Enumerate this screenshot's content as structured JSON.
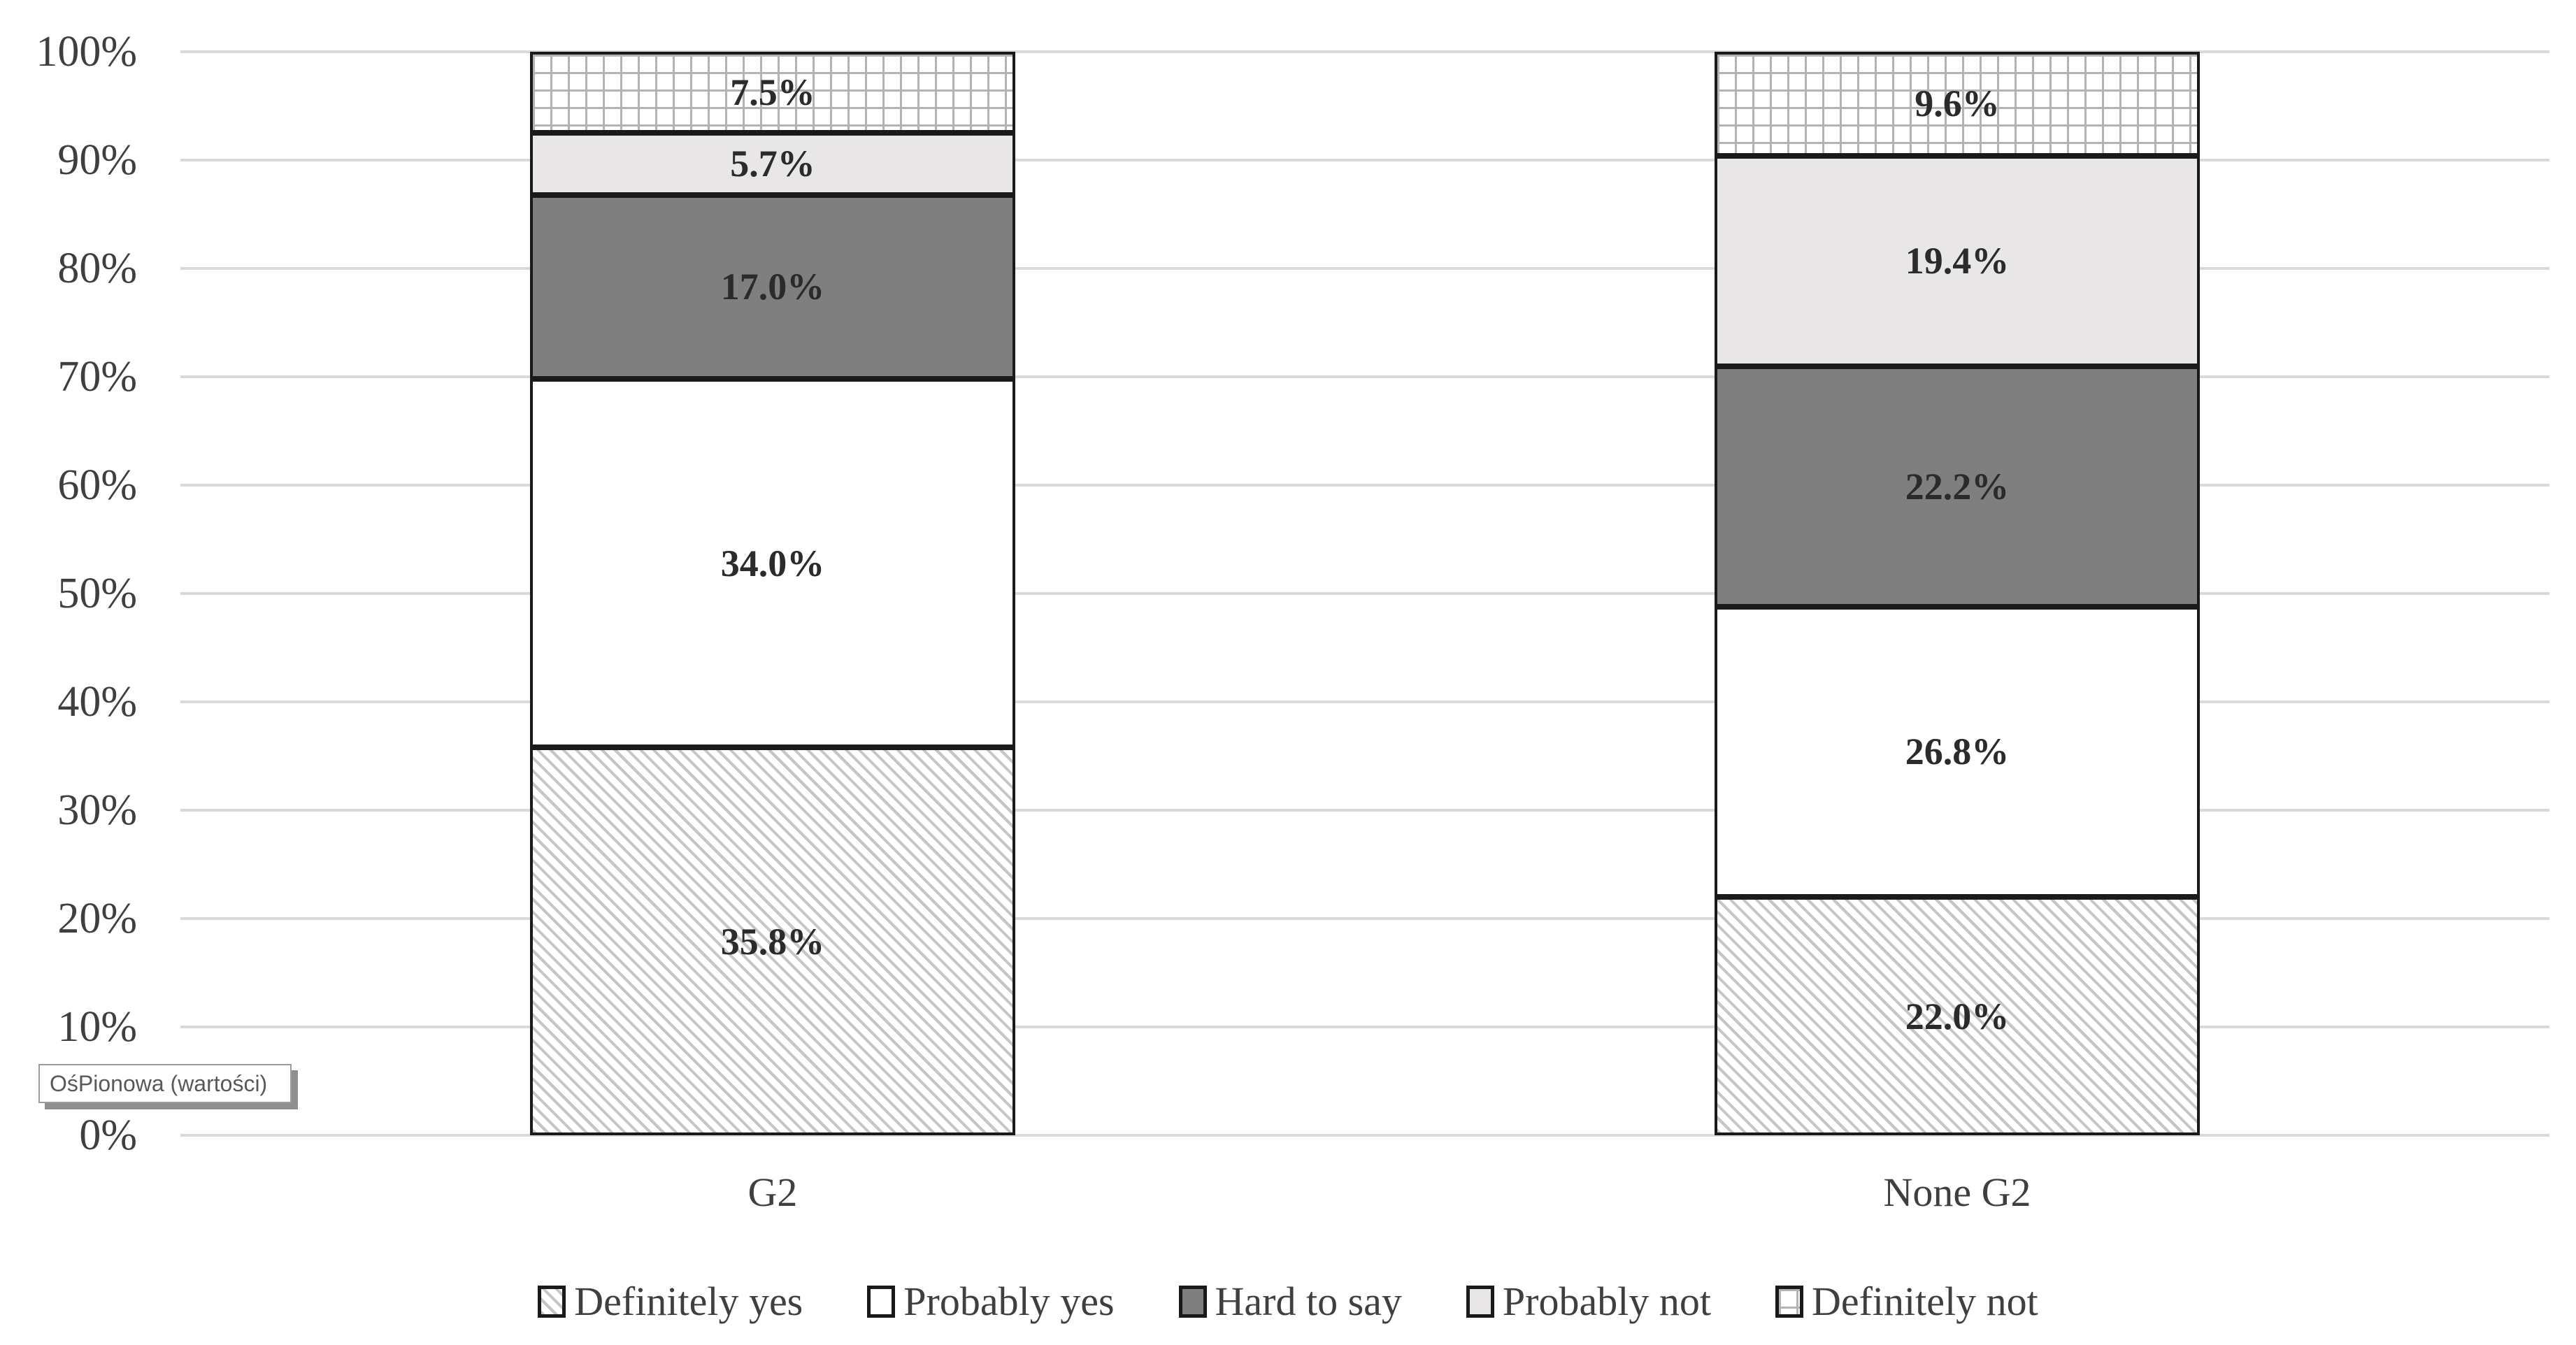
{
  "chart_data": {
    "type": "bar",
    "stacked": true,
    "orientation": "vertical",
    "title": "",
    "categories": [
      "G2",
      "None G2"
    ],
    "series": [
      {
        "name": "Definitely yes",
        "style": "diagonal_hatch",
        "values": [
          35.8,
          22.0
        ]
      },
      {
        "name": "Probably yes",
        "style": "white",
        "values": [
          34.0,
          26.8
        ]
      },
      {
        "name": "Hard to say",
        "style": "dark_gray",
        "values": [
          17.0,
          22.2
        ]
      },
      {
        "name": "Probably not",
        "style": "light_gray",
        "values": [
          5.7,
          19.4
        ]
      },
      {
        "name": "Definitely not",
        "style": "fine_grid",
        "values": [
          7.5,
          9.6
        ]
      }
    ],
    "value_label_format": "{value}%",
    "y_axis": {
      "range": [
        0,
        100
      ],
      "gridlines": true,
      "ticks": [
        {
          "label": "0%",
          "value": 0
        },
        {
          "label": "10%",
          "value": 10
        },
        {
          "label": "20%",
          "value": 20
        },
        {
          "label": "30%",
          "value": 30
        },
        {
          "label": "40%",
          "value": 40
        },
        {
          "label": "50%",
          "value": 50
        },
        {
          "label": "60%",
          "value": 60
        },
        {
          "label": "70%",
          "value": 70
        },
        {
          "label": "80%",
          "value": 80
        },
        {
          "label": "90%",
          "value": 90
        },
        {
          "label": "100%",
          "value": 100
        }
      ]
    },
    "legend_position": "bottom"
  },
  "tooltip": {
    "text": "OśPionowa (wartości)"
  },
  "colors": {
    "background": "#ffffff",
    "gridline": "#d9d9d9",
    "bar_border": "#1a1a1a",
    "dark_gray_fill": "#7f7f7f",
    "light_gray_fill": "#e8e6e6",
    "hatch_stripe": "#c6c6c6",
    "grid_pattern_line": "#b3b3b3",
    "axis_text": "#3f3f3f",
    "data_label_text": "#2b2b2b",
    "tooltip_text": "#595959",
    "tooltip_border": "#9c9c9c",
    "tooltip_shadow": "#8f8f8f"
  }
}
